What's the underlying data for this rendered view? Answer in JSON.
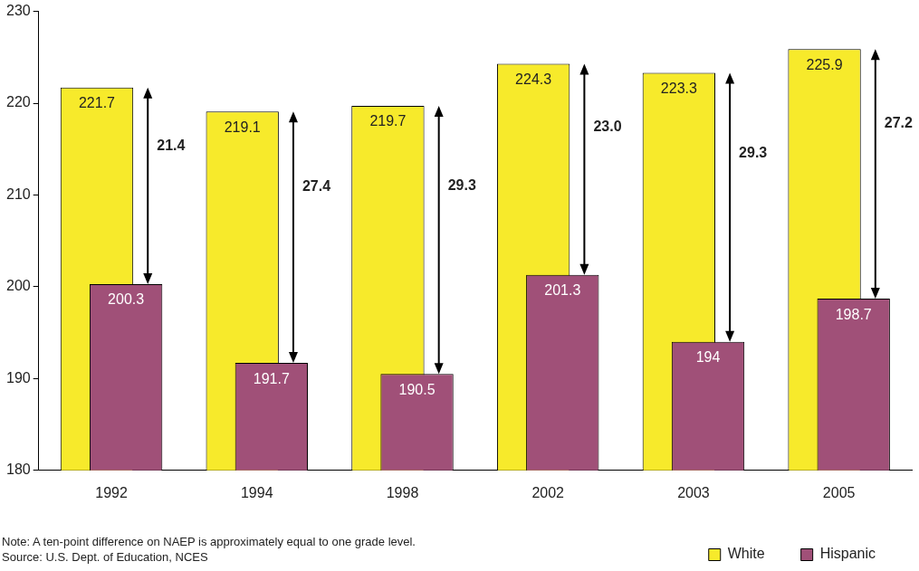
{
  "chart_data": {
    "type": "bar",
    "categories": [
      "1992",
      "1994",
      "1998",
      "2002",
      "2003",
      "2005"
    ],
    "series": [
      {
        "name": "White",
        "color": "#f7ea2b",
        "values": [
          221.7,
          219.1,
          219.7,
          224.3,
          223.3,
          225.9
        ]
      },
      {
        "name": "Hispanic",
        "color": "#a05078",
        "values": [
          200.3,
          191.7,
          190.5,
          201.3,
          194,
          198.7
        ]
      }
    ],
    "ylim": [
      180,
      230
    ],
    "yticks": [
      180,
      190,
      200,
      210,
      220,
      230
    ],
    "grid": false,
    "legend": "bottom right",
    "data_labels": true,
    "annotations": [
      "21.4",
      "27.4",
      "29.3",
      "23.0",
      "29.3",
      "27.2",
      "Note: A ten-point difference on NAEP is approximately equal to one grade level.",
      "Source: U.S. Dept. of Education, NCES"
    ]
  }
}
